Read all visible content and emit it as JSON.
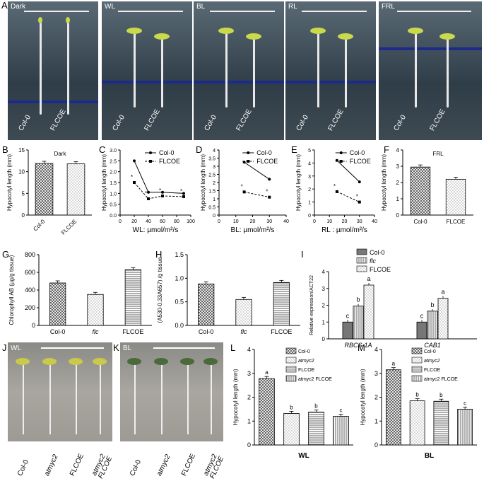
{
  "panel_letters": [
    "A",
    "B",
    "C",
    "D",
    "E",
    "F",
    "G",
    "H",
    "I",
    "J",
    "K",
    "L",
    "M"
  ],
  "photos_top": [
    {
      "condition": "Dark",
      "labels": [
        "Col-0",
        "FLCOE"
      ]
    },
    {
      "condition": "WL",
      "labels": [
        "Col-0",
        "FLCOE"
      ]
    },
    {
      "condition": "BL",
      "labels": [
        "Col-0",
        "FLCOE"
      ]
    },
    {
      "condition": "RL",
      "labels": [
        "Col-0",
        "FLCOE"
      ]
    },
    {
      "condition": "FRL",
      "labels": [
        "Col-0",
        "FLCOE"
      ]
    }
  ],
  "photos_bottom": [
    {
      "condition": "WL",
      "labels": [
        "Col-0",
        "atmyc2",
        "FLCOE",
        "atmyc2 FLCOE"
      ]
    },
    {
      "condition": "BL",
      "labels": [
        "Col-0",
        "atmyc2",
        "FLCOE",
        "atmyc2 FLCOE"
      ]
    }
  ],
  "colors": {
    "photo_bg": "#3a4a55",
    "seedling": "#c9d94a",
    "stem": "#e8e8e8",
    "band": "#1c2a8a"
  },
  "chart_data": [
    {
      "id": "B",
      "type": "bar",
      "title": "Dark",
      "ylabel": "Hypocotyl length (mm)",
      "ylim": [
        0,
        15
      ],
      "yticks": [
        "0",
        "5",
        "10",
        "15"
      ],
      "categories": [
        "Col-0",
        "FLCOE"
      ],
      "values": [
        11.9,
        11.8
      ]
    },
    {
      "id": "C",
      "type": "line",
      "xlabel": "WL: µmol/m²/s",
      "ylabel": "Hypocotyl length (mm)",
      "xlim": [
        0,
        100
      ],
      "ylim": [
        0,
        3
      ],
      "xticks": [
        "0",
        "20",
        "40",
        "60",
        "80",
        "100"
      ],
      "yticks": [
        "0.0",
        "0.5",
        "1.0",
        "1.5",
        "2.0",
        "2.5",
        "3.0"
      ],
      "series": [
        {
          "name": "Col-0",
          "x": [
            20,
            40,
            60,
            90
          ],
          "y": [
            2.5,
            1.05,
            1.05,
            1.0
          ]
        },
        {
          "name": "FLCOE",
          "x": [
            20,
            40,
            60,
            90
          ],
          "y": [
            1.5,
            0.75,
            0.88,
            0.85
          ]
        }
      ]
    },
    {
      "id": "D",
      "type": "line",
      "xlabel": "BL: µmol/m²/s",
      "ylabel": "Hypocotyl length (mm)",
      "xlim": [
        0,
        40
      ],
      "ylim": [
        0,
        4
      ],
      "xticks": [
        "0",
        "10",
        "20",
        "30",
        "40"
      ],
      "yticks": [
        "0",
        "0.5",
        "1",
        "1.5",
        "2",
        "2.5",
        "3",
        "3.5",
        "4"
      ],
      "series": [
        {
          "name": "Col-0",
          "x": [
            15,
            30
          ],
          "y": [
            3.25,
            2.2
          ]
        },
        {
          "name": "FLCOE",
          "x": [
            15,
            30
          ],
          "y": [
            1.42,
            1.1
          ]
        }
      ]
    },
    {
      "id": "E",
      "type": "line",
      "xlabel": "RL : µmol/m²/s",
      "ylabel": "Hypocotyl length (mm)",
      "xlim": [
        0,
        40
      ],
      "ylim": [
        0,
        5
      ],
      "xticks": [
        "0",
        "10",
        "20",
        "30",
        "40"
      ],
      "yticks": [
        "0",
        "1",
        "2",
        "3",
        "4",
        "5"
      ],
      "series": [
        {
          "name": "Col-0",
          "x": [
            15,
            30
          ],
          "y": [
            4.2,
            2.55
          ]
        },
        {
          "name": "FLCOE",
          "x": [
            15,
            30
          ],
          "y": [
            1.8,
            1.0
          ]
        }
      ]
    },
    {
      "id": "F",
      "type": "bar",
      "title": "FRL",
      "ylabel": "Hypocotyl length (mm)",
      "ylim": [
        0,
        4
      ],
      "yticks": [
        "0",
        "1",
        "2",
        "3",
        "4"
      ],
      "categories": [
        "Col-0",
        "FLCOE"
      ],
      "values": [
        2.95,
        2.2
      ]
    },
    {
      "id": "G",
      "type": "bar",
      "ylabel": "Chlorophyll AB (µg/g tissue)",
      "ylim": [
        0,
        800
      ],
      "yticks": [
        "0",
        "200",
        "400",
        "600",
        "800"
      ],
      "categories": [
        "Col-0",
        "flc",
        "FLCOE"
      ],
      "values": [
        480,
        350,
        630
      ]
    },
    {
      "id": "H",
      "type": "bar",
      "ylabel": "(A530-0.33A657) /g tissue",
      "ylim": [
        0,
        1.5
      ],
      "yticks": [
        "0.0",
        "0.5",
        "1.0",
        "1.5"
      ],
      "categories": [
        "Col-0",
        "flc",
        "FLCOE"
      ],
      "values": [
        0.88,
        0.55,
        0.91
      ]
    },
    {
      "id": "I",
      "type": "bar",
      "ylabel": "Relative expression/ACT22",
      "ylim": [
        0,
        4
      ],
      "yticks": [
        "0",
        "1",
        "2",
        "3",
        "4"
      ],
      "categories": [
        "RBCS-1A",
        "CAB1"
      ],
      "series": [
        {
          "name": "Col-0",
          "values": [
            1.0,
            1.0
          ]
        },
        {
          "name": "flc",
          "values": [
            1.95,
            1.65
          ]
        },
        {
          "name": "FLCOE",
          "values": [
            3.2,
            2.42
          ]
        }
      ],
      "annotations": [
        [
          "c",
          "b",
          "a"
        ],
        [
          "c",
          "b",
          "a"
        ]
      ]
    },
    {
      "id": "L",
      "type": "bar",
      "xlabel": "WL",
      "ylabel": "Hypocotyl length (mm)",
      "ylim": [
        0,
        4
      ],
      "yticks": [
        "0",
        "1",
        "2",
        "3",
        "4"
      ],
      "categories": [
        "Col-0",
        "atmyc2",
        "FLCOE",
        "atmyc2 FLCOE"
      ],
      "values": [
        2.78,
        1.32,
        1.38,
        1.2
      ],
      "annotations": [
        "a",
        "b",
        "b",
        "c"
      ]
    },
    {
      "id": "M",
      "type": "bar",
      "xlabel": "BL",
      "ylabel": "Hypocotyl length (mm)",
      "ylim": [
        0,
        4
      ],
      "yticks": [
        "0",
        "1",
        "2",
        "3",
        "4"
      ],
      "categories": [
        "Col-0",
        "atmyc2",
        "FLCOE",
        "atmyc2 FLCOE"
      ],
      "values": [
        3.15,
        1.85,
        1.83,
        1.5
      ],
      "annotations": [
        "a",
        "b",
        "b",
        "c"
      ]
    }
  ]
}
